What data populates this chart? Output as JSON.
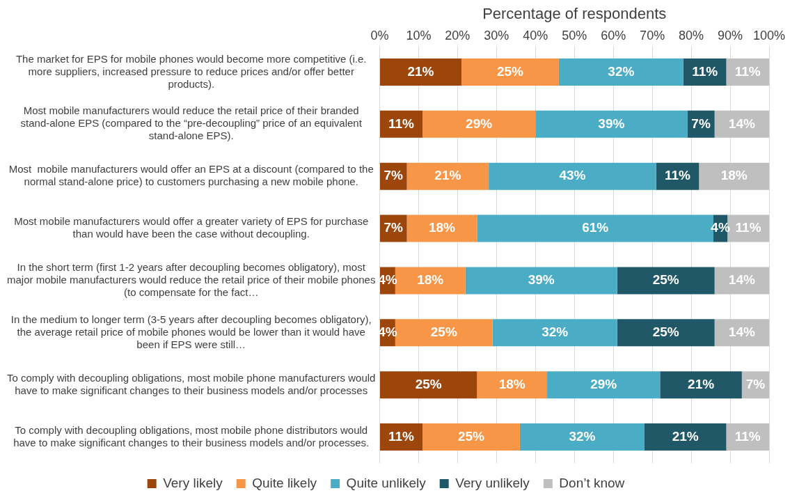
{
  "chart_data": {
    "type": "bar",
    "orientation": "horizontal",
    "stacked": true,
    "xlabel": "Percentage of respondents",
    "categories": [
      "The market for EPS for mobile phones would become more competitive (i.e. more suppliers, increased pressure to reduce prices and/or offer better products).",
      "Most mobile manufacturers would reduce the retail price of their branded stand-alone EPS (compared to the “pre-decoupling” price of an equivalent stand-alone EPS).",
      "Most  mobile manufacturers would offer an EPS at a discount (compared to the normal stand-alone price) to customers purchasing a new mobile phone.",
      "Most mobile manufacturers would offer a greater variety of EPS for purchase than would have been the case without decoupling.",
      "In the short term (first 1-2 years after decoupling becomes obligatory), most major mobile manufacturers would reduce the retail price of their mobile phones (to compensate for the fact…",
      "In the medium to longer term (3-5 years after decoupling becomes obligatory), the average retail price of mobile phones would be lower than it would have been if EPS were still…",
      "To comply with decoupling obligations, most mobile phone manufacturers would have to make significant changes to their business models and/or processes",
      "To comply with decoupling obligations, most mobile phone distributors would have to make significant changes to their business models and/or processes."
    ],
    "series": [
      {
        "name": "Very likely",
        "color": "#9c460c",
        "values": [
          21,
          11,
          7,
          7,
          4,
          4,
          25,
          11
        ],
        "value_labels": [
          "21%",
          "11%",
          "7%",
          "7%",
          "4%",
          "4%",
          "25%",
          "11%"
        ]
      },
      {
        "name": "Quite likely",
        "color": "#f79646",
        "values": [
          25,
          29,
          21,
          18,
          18,
          25,
          18,
          25
        ],
        "value_labels": [
          "25%",
          "29%",
          "21%",
          "18%",
          "18%",
          "25%",
          "18%",
          "25%"
        ]
      },
      {
        "name": "Quite unlikely",
        "color": "#4bacc6",
        "values": [
          32,
          39,
          43,
          60.7,
          39,
          32,
          29,
          32
        ],
        "value_labels": [
          "32%",
          "39%",
          "43%",
          "61%",
          "39%",
          "32%",
          "29%",
          "32%"
        ]
      },
      {
        "name": "Very unlikely",
        "color": "#215868",
        "values": [
          11,
          7,
          11,
          3.6,
          25,
          25,
          21,
          21
        ],
        "value_labels": [
          "11%",
          "7%",
          "11%",
          "4%",
          "25%",
          "25%",
          "21%",
          "21%"
        ]
      },
      {
        "name": "Don’t know",
        "color": "#bfbfbf",
        "values": [
          11,
          14,
          18,
          10.7,
          14,
          14,
          7,
          11
        ],
        "value_labels": [
          "11%",
          "14%",
          "18%",
          "11%",
          "14%",
          "14%",
          "7%",
          "11%"
        ]
      }
    ],
    "xlim": [
      0,
      100
    ],
    "xticks": [
      {
        "value": 0,
        "label": "0%"
      },
      {
        "value": 10,
        "label": "10%"
      },
      {
        "value": 20,
        "label": "20%"
      },
      {
        "value": 30,
        "label": "30%"
      },
      {
        "value": 40,
        "label": "40%"
      },
      {
        "value": 50,
        "label": "50%"
      },
      {
        "value": 60,
        "label": "60%"
      },
      {
        "value": 70,
        "label": "70%"
      },
      {
        "value": 80,
        "label": "80%"
      },
      {
        "value": 90,
        "label": "90%"
      },
      {
        "value": 100,
        "label": "100%"
      }
    ],
    "grid": "x",
    "legend": "bottom"
  }
}
